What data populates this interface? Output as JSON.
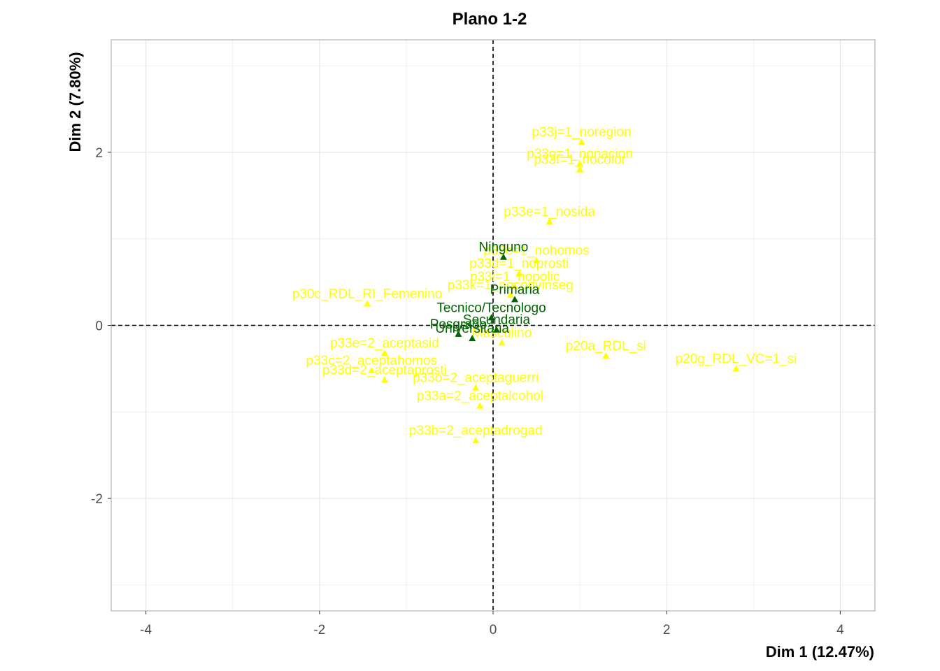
{
  "chart_data": {
    "type": "scatter",
    "title": "Plano 1-2",
    "xlabel": "Dim 1 (12.47%)",
    "ylabel": "Dim 2 (7.80%)",
    "xlim": [
      -4.4,
      4.4
    ],
    "ylim": [
      -3.3,
      3.3
    ],
    "xticks": [
      -4,
      -2,
      0,
      2,
      4
    ],
    "yticks": [
      -2,
      0,
      2
    ],
    "xtick_labels": [
      "-4",
      "-2",
      "0",
      "2",
      "4"
    ],
    "ytick_labels": [
      "-2",
      "0",
      "2"
    ],
    "grid": true,
    "reference_lines": {
      "x": 0,
      "y": 0,
      "style": "dashed"
    },
    "colors": {
      "variable_points": "#ffff00",
      "supplementary_points": "#006400",
      "grid": "#e5e5e5",
      "panel_border": "#b3b3b3"
    },
    "series": [
      {
        "role": "variables",
        "points": [
          {
            "label": "p33j=1_noregion",
            "x": 1.02,
            "y": 2.12
          },
          {
            "label": "p33g=1_nonacion",
            "x": 1.0,
            "y": 1.87
          },
          {
            "label": "p33f=1_nocolor",
            "x": 1.0,
            "y": 1.8
          },
          {
            "label": "p33e=1_nosida",
            "x": 0.65,
            "y": 1.2
          },
          {
            "label": "p33c=1_nohomos",
            "x": 0.5,
            "y": 0.75
          },
          {
            "label": "p33d=1_noprosti",
            "x": 0.3,
            "y": 0.6
          },
          {
            "label": "p33i=1_nopolic",
            "x": 0.25,
            "y": 0.45
          },
          {
            "label": "p33k=1_noconvinseg",
            "x": 0.2,
            "y": 0.35
          },
          {
            "label": "p30c_RDL_RI_Femenino",
            "x": -1.45,
            "y": 0.25
          },
          {
            "label": "Masculino",
            "x": 0.1,
            "y": -0.2
          },
          {
            "label": "p20a_RDL_si",
            "x": 1.3,
            "y": -0.35
          },
          {
            "label": "p20g_RDL_VC=1_si",
            "x": 2.8,
            "y": -0.5
          },
          {
            "label": "p33e=2_aceptasid",
            "x": -1.25,
            "y": -0.32
          },
          {
            "label": "p33c=2_aceptahomos",
            "x": -1.4,
            "y": -0.52
          },
          {
            "label": "p33d=2_aceptaprosti",
            "x": -1.25,
            "y": -0.63
          },
          {
            "label": "p33o=2_aceptaguerri",
            "x": -0.2,
            "y": -0.72
          },
          {
            "label": "p33a=2_aceptalcohol",
            "x": -0.15,
            "y": -0.93
          },
          {
            "label": "p33b=2_aceptadrogad",
            "x": -0.2,
            "y": -1.33
          }
        ]
      },
      {
        "role": "supplementary",
        "points": [
          {
            "label": "Ninguno",
            "x": 0.12,
            "y": 0.79
          },
          {
            "label": "Primaria",
            "x": 0.25,
            "y": 0.3
          },
          {
            "label": "Tecnico/Tecnologo",
            "x": -0.02,
            "y": 0.09
          },
          {
            "label": "Secundaria",
            "x": 0.04,
            "y": -0.05
          },
          {
            "label": "Posgrado",
            "x": -0.4,
            "y": -0.1
          },
          {
            "label": "Universitaria",
            "x": -0.24,
            "y": -0.15
          }
        ]
      }
    ]
  }
}
